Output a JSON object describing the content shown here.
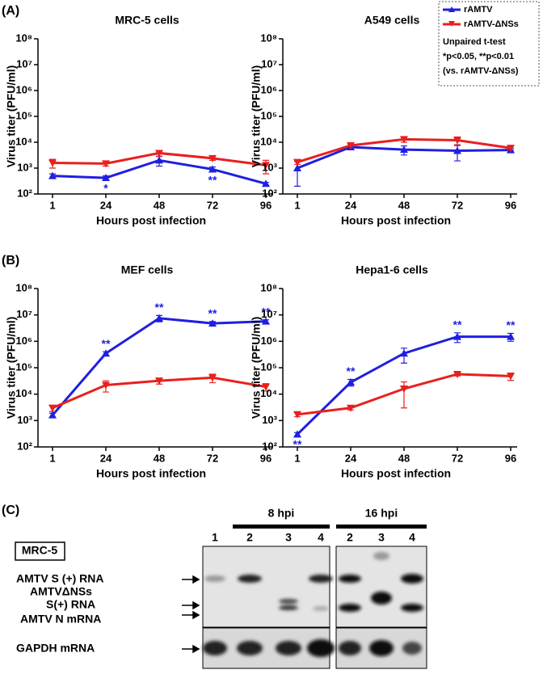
{
  "panel_labels": [
    "(A)",
    "(B)",
    "(C)"
  ],
  "legend_note": [
    "Unpaired t-test",
    "*p<0.05, **p<0.01",
    "(vs. rAMTV-ΔNSs)"
  ],
  "chart_data": [
    {
      "type": "line",
      "title": "MRC-5 cells",
      "x_label": "Hours post infection",
      "y_label": "Virus titer (PFU/ml)",
      "categories": [
        "1",
        "24",
        "48",
        "72",
        "96"
      ],
      "log_scale": true,
      "ylim": [
        100,
        100000000
      ],
      "yticks": [
        {
          "value": 100,
          "label": "10²"
        },
        {
          "value": 1000,
          "label": "10³"
        },
        {
          "value": 10000,
          "label": "10⁴"
        },
        {
          "value": 100000,
          "label": "10⁵"
        },
        {
          "value": 1000000,
          "label": "10⁶"
        },
        {
          "value": 10000000,
          "label": "10⁷"
        },
        {
          "value": 100000000,
          "label": "10⁸"
        }
      ],
      "series": [
        {
          "name": "rAMTV",
          "color": "#1f1fe0",
          "marker": "triangle-up",
          "values": [
            500,
            420,
            2000,
            900,
            250
          ],
          "errors": [
            100,
            80,
            800,
            200,
            30
          ],
          "significance": [
            null,
            "*",
            null,
            "**",
            null
          ]
        },
        {
          "name": "rAMTV-ΔNSs",
          "color": "#e8201e",
          "marker": "triangle-down",
          "values": [
            1600,
            1500,
            3800,
            2400,
            1300
          ],
          "errors": [
            600,
            300,
            900,
            400,
            700
          ]
        }
      ]
    },
    {
      "type": "line",
      "title": "A549 cells",
      "x_label": "Hours post infection",
      "y_label": "Virus titer (PFU/ml)",
      "categories": [
        "1",
        "24",
        "48",
        "72",
        "96"
      ],
      "log_scale": true,
      "ylim": [
        100,
        100000000
      ],
      "yticks": [
        {
          "value": 100,
          "label": "10²"
        },
        {
          "value": 1000,
          "label": "10³"
        },
        {
          "value": 10000,
          "label": "10⁴"
        },
        {
          "value": 100000,
          "label": "10⁵"
        },
        {
          "value": 1000000,
          "label": "10⁶"
        },
        {
          "value": 10000000,
          "label": "10⁷"
        },
        {
          "value": 100000000,
          "label": "10⁸"
        }
      ],
      "series": [
        {
          "name": "rAMTV",
          "color": "#1f1fe0",
          "marker": "triangle-up",
          "values": [
            1000,
            6500,
            5200,
            4700,
            5000
          ],
          "errors": [
            800,
            1000,
            2000,
            2800,
            800
          ]
        },
        {
          "name": "rAMTV-ΔNSs",
          "color": "#e8201e",
          "marker": "triangle-down",
          "values": [
            1700,
            7500,
            13000,
            12000,
            6000
          ],
          "errors": [
            300,
            1000,
            3000,
            4000,
            1000
          ]
        }
      ]
    },
    {
      "type": "line",
      "title": "MEF cells",
      "x_label": "Hours post infection",
      "y_label": "Virus titer (PFU/ml)",
      "categories": [
        "1",
        "24",
        "48",
        "72",
        "96"
      ],
      "log_scale": true,
      "ylim": [
        100,
        100000000
      ],
      "yticks": [
        {
          "value": 100,
          "label": "10²"
        },
        {
          "value": 1000,
          "label": "10³"
        },
        {
          "value": 10000,
          "label": "10⁴"
        },
        {
          "value": 100000,
          "label": "10⁵"
        },
        {
          "value": 1000000,
          "label": "10⁶"
        },
        {
          "value": 10000000,
          "label": "10⁷"
        },
        {
          "value": 100000000,
          "label": "10⁸"
        }
      ],
      "series": [
        {
          "name": "rAMTV",
          "color": "#1f1fe0",
          "marker": "triangle-up",
          "values": [
            1600,
            350000,
            7500000,
            4800000,
            5700000
          ],
          "errors": [
            300,
            50000,
            2000000,
            800000,
            800000
          ],
          "significance": [
            null,
            "**",
            "**",
            "**",
            "**"
          ]
        },
        {
          "name": "rAMTV-ΔNSs",
          "color": "#e8201e",
          "marker": "triangle-down",
          "values": [
            3000,
            22000,
            32000,
            42000,
            19000
          ],
          "errors": [
            800,
            10000,
            8000,
            15000,
            6000
          ]
        }
      ]
    },
    {
      "type": "line",
      "title": "Hepa1-6 cells",
      "x_label": "Hours post infection",
      "y_label": "Virus titer (PFU/ml)",
      "categories": [
        "1",
        "24",
        "48",
        "72",
        "96"
      ],
      "log_scale": true,
      "ylim": [
        100,
        100000000
      ],
      "yticks": [
        {
          "value": 100,
          "label": "10²"
        },
        {
          "value": 1000,
          "label": "10³"
        },
        {
          "value": 10000,
          "label": "10⁴"
        },
        {
          "value": 100000,
          "label": "10⁵"
        },
        {
          "value": 1000000,
          "label": "10⁶"
        },
        {
          "value": 10000000,
          "label": "10⁷"
        },
        {
          "value": 100000000,
          "label": "10⁸"
        }
      ],
      "series": [
        {
          "name": "rAMTV",
          "color": "#1f1fe0",
          "marker": "triangle-up",
          "values": [
            300,
            28000,
            350000,
            1500000,
            1500000
          ],
          "errors": [
            50,
            8000,
            200000,
            600000,
            500000
          ],
          "significance": [
            "**",
            "**",
            null,
            "**",
            "**"
          ]
        },
        {
          "name": "rAMTV-ΔNSs",
          "color": "#e8201e",
          "marker": "triangle-down",
          "values": [
            1700,
            3000,
            16000,
            57000,
            48000
          ],
          "errors": [
            300,
            500,
            13000,
            8000,
            15000
          ]
        }
      ]
    }
  ],
  "blot": {
    "cell_line": "MRC-5",
    "time_points": [
      "8 hpi",
      "16 hpi"
    ],
    "lanes": [
      "1",
      "2",
      "3",
      "4",
      "2",
      "3",
      "4"
    ],
    "row_labels": [
      "AMTV S (+) RNA",
      "AMTVΔNSs",
      "S(+) RNA",
      "AMTV N mRNA",
      "GAPDH mRNA"
    ]
  }
}
